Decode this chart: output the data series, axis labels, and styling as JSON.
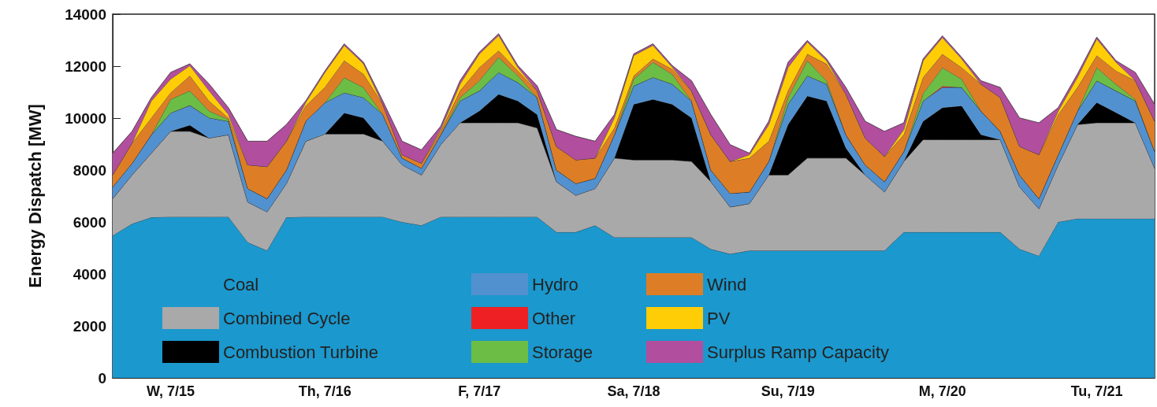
{
  "chart_data": {
    "type": "area",
    "stacked": true,
    "ylabel": "Energy Dispatch [MW]",
    "categories": [
      null,
      null,
      null,
      "W, 7/15",
      null,
      null,
      null,
      null,
      null,
      null,
      null,
      "Th, 7/16",
      null,
      null,
      null,
      null,
      null,
      null,
      null,
      "F, 7/17",
      null,
      null,
      null,
      null,
      null,
      null,
      null,
      "Sa, 7/18",
      null,
      null,
      null,
      null,
      null,
      null,
      null,
      "Su, 7/19",
      null,
      null,
      null,
      null,
      null,
      null,
      null,
      "M, 7/20",
      null,
      null,
      null,
      null,
      null,
      null,
      null,
      "Tu, 7/21",
      null,
      null,
      null
    ],
    "ylim": [
      0,
      14000
    ],
    "yticks": [
      0,
      2000,
      4000,
      6000,
      8000,
      10000,
      12000,
      14000
    ],
    "grid": false,
    "legend": "bottom left",
    "series": [
      {
        "name": "Coal",
        "color": "#1b98cd",
        "values": [
          5480,
          5930,
          6180,
          6200,
          6200,
          6200,
          6200,
          5220,
          4900,
          6180,
          6200,
          6200,
          6200,
          6200,
          6200,
          6000,
          5870,
          6200,
          6200,
          6200,
          6200,
          6200,
          6200,
          5610,
          5610,
          5870,
          5410,
          5410,
          5410,
          5410,
          5410,
          4960,
          4770,
          4900,
          4900,
          4900,
          4900,
          4900,
          4900,
          4900,
          4900,
          5610,
          5610,
          5610,
          5610,
          5610,
          5610,
          4960,
          4700,
          6000,
          6130,
          6130,
          6130,
          6130,
          6130
        ]
      },
      {
        "name": "Combined Cycle",
        "color": "#aaa9aa",
        "values": [
          1420,
          1880,
          2470,
          3290,
          3290,
          3030,
          3160,
          1550,
          1490,
          1300,
          2910,
          3190,
          3190,
          3190,
          2910,
          2200,
          1940,
          2780,
          3620,
          3620,
          3620,
          3620,
          3420,
          1940,
          1420,
          1420,
          3050,
          2980,
          2980,
          2980,
          2920,
          2590,
          1810,
          1810,
          2910,
          2910,
          3560,
          3560,
          3560,
          2910,
          2260,
          2720,
          3560,
          3560,
          3560,
          3560,
          3560,
          2390,
          1810,
          2200,
          3620,
          3690,
          3690,
          3690,
          1940
        ]
      },
      {
        "name": "Combustion Turbine",
        "color": "#000000",
        "values": [
          0,
          0,
          0,
          0,
          240,
          0,
          0,
          0,
          0,
          0,
          0,
          0,
          810,
          620,
          0,
          0,
          0,
          0,
          0,
          450,
          1100,
          840,
          520,
          0,
          0,
          0,
          0,
          2140,
          2330,
          2140,
          1680,
          0,
          0,
          0,
          0,
          1940,
          2390,
          2200,
          390,
          0,
          0,
          0,
          710,
          1230,
          1300,
          190,
          0,
          0,
          0,
          0,
          0,
          780,
          390,
          0,
          0
        ]
      },
      {
        "name": "Hydro",
        "color": "#5291cf",
        "values": [
          450,
          450,
          710,
          710,
          760,
          780,
          520,
          520,
          510,
          520,
          770,
          1210,
          780,
          780,
          1030,
          260,
          260,
          380,
          840,
          780,
          840,
          710,
          650,
          450,
          450,
          390,
          900,
          710,
          850,
          780,
          650,
          450,
          520,
          450,
          520,
          780,
          780,
          650,
          510,
          390,
          390,
          390,
          780,
          780,
          710,
          910,
          320,
          460,
          390,
          390,
          520,
          840,
          840,
          840,
          650
        ]
      },
      {
        "name": "Other",
        "color": "#ee2024",
        "values": [
          0,
          0,
          0,
          0,
          0,
          0,
          0,
          0,
          0,
          0,
          0,
          0,
          0,
          0,
          0,
          0,
          0,
          0,
          0,
          0,
          0,
          0,
          0,
          0,
          0,
          0,
          0,
          0,
          0,
          0,
          0,
          0,
          0,
          0,
          0,
          0,
          0,
          0,
          0,
          0,
          0,
          0,
          0,
          50,
          0,
          0,
          0,
          0,
          0,
          0,
          0,
          0,
          0,
          0,
          0
        ]
      },
      {
        "name": "Storage",
        "color": "#6cbd45",
        "values": [
          0,
          0,
          0,
          520,
          560,
          260,
          70,
          0,
          0,
          0,
          0,
          0,
          580,
          390,
          0,
          0,
          0,
          0,
          130,
          390,
          580,
          260,
          0,
          0,
          0,
          0,
          0,
          260,
          580,
          380,
          0,
          0,
          0,
          0,
          0,
          260,
          580,
          130,
          0,
          0,
          0,
          0,
          290,
          710,
          320,
          0,
          0,
          0,
          0,
          0,
          0,
          510,
          250,
          60,
          0
        ]
      },
      {
        "name": "Wind",
        "color": "#dd7e27",
        "values": [
          460,
          780,
          650,
          260,
          580,
          390,
          60,
          910,
          1230,
          1110,
          590,
          600,
          650,
          520,
          390,
          130,
          190,
          130,
          260,
          510,
          260,
          190,
          260,
          900,
          910,
          780,
          260,
          130,
          130,
          200,
          390,
          1360,
          1230,
          1300,
          780,
          260,
          260,
          640,
          1560,
          1030,
          970,
          640,
          620,
          520,
          450,
          1040,
          1300,
          1100,
          1690,
          1550,
          910,
          460,
          520,
          720,
          1160
        ]
      },
      {
        "name": "PV",
        "color": "#fecd06",
        "values": [
          0,
          0,
          650,
          520,
          390,
          390,
          130,
          0,
          0,
          0,
          130,
          560,
          590,
          390,
          0,
          0,
          0,
          70,
          260,
          520,
          580,
          130,
          0,
          0,
          0,
          0,
          390,
          780,
          520,
          70,
          0,
          0,
          0,
          130,
          640,
          900,
          460,
          130,
          0,
          0,
          0,
          200,
          640,
          640,
          330,
          0,
          0,
          0,
          0,
          130,
          390,
          640,
          330,
          0,
          0
        ]
      },
      {
        "name": "Surplus Ramp Capacity",
        "color": "#b24e9e",
        "values": [
          840,
          450,
          130,
          260,
          70,
          260,
          260,
          910,
          980,
          640,
          60,
          60,
          60,
          60,
          130,
          520,
          520,
          130,
          130,
          70,
          70,
          70,
          190,
          660,
          910,
          650,
          130,
          60,
          60,
          60,
          390,
          780,
          650,
          60,
          130,
          200,
          60,
          70,
          260,
          650,
          970,
          260,
          70,
          70,
          60,
          130,
          390,
          1100,
          1230,
          130,
          130,
          70,
          60,
          320,
          650
        ]
      }
    ]
  }
}
